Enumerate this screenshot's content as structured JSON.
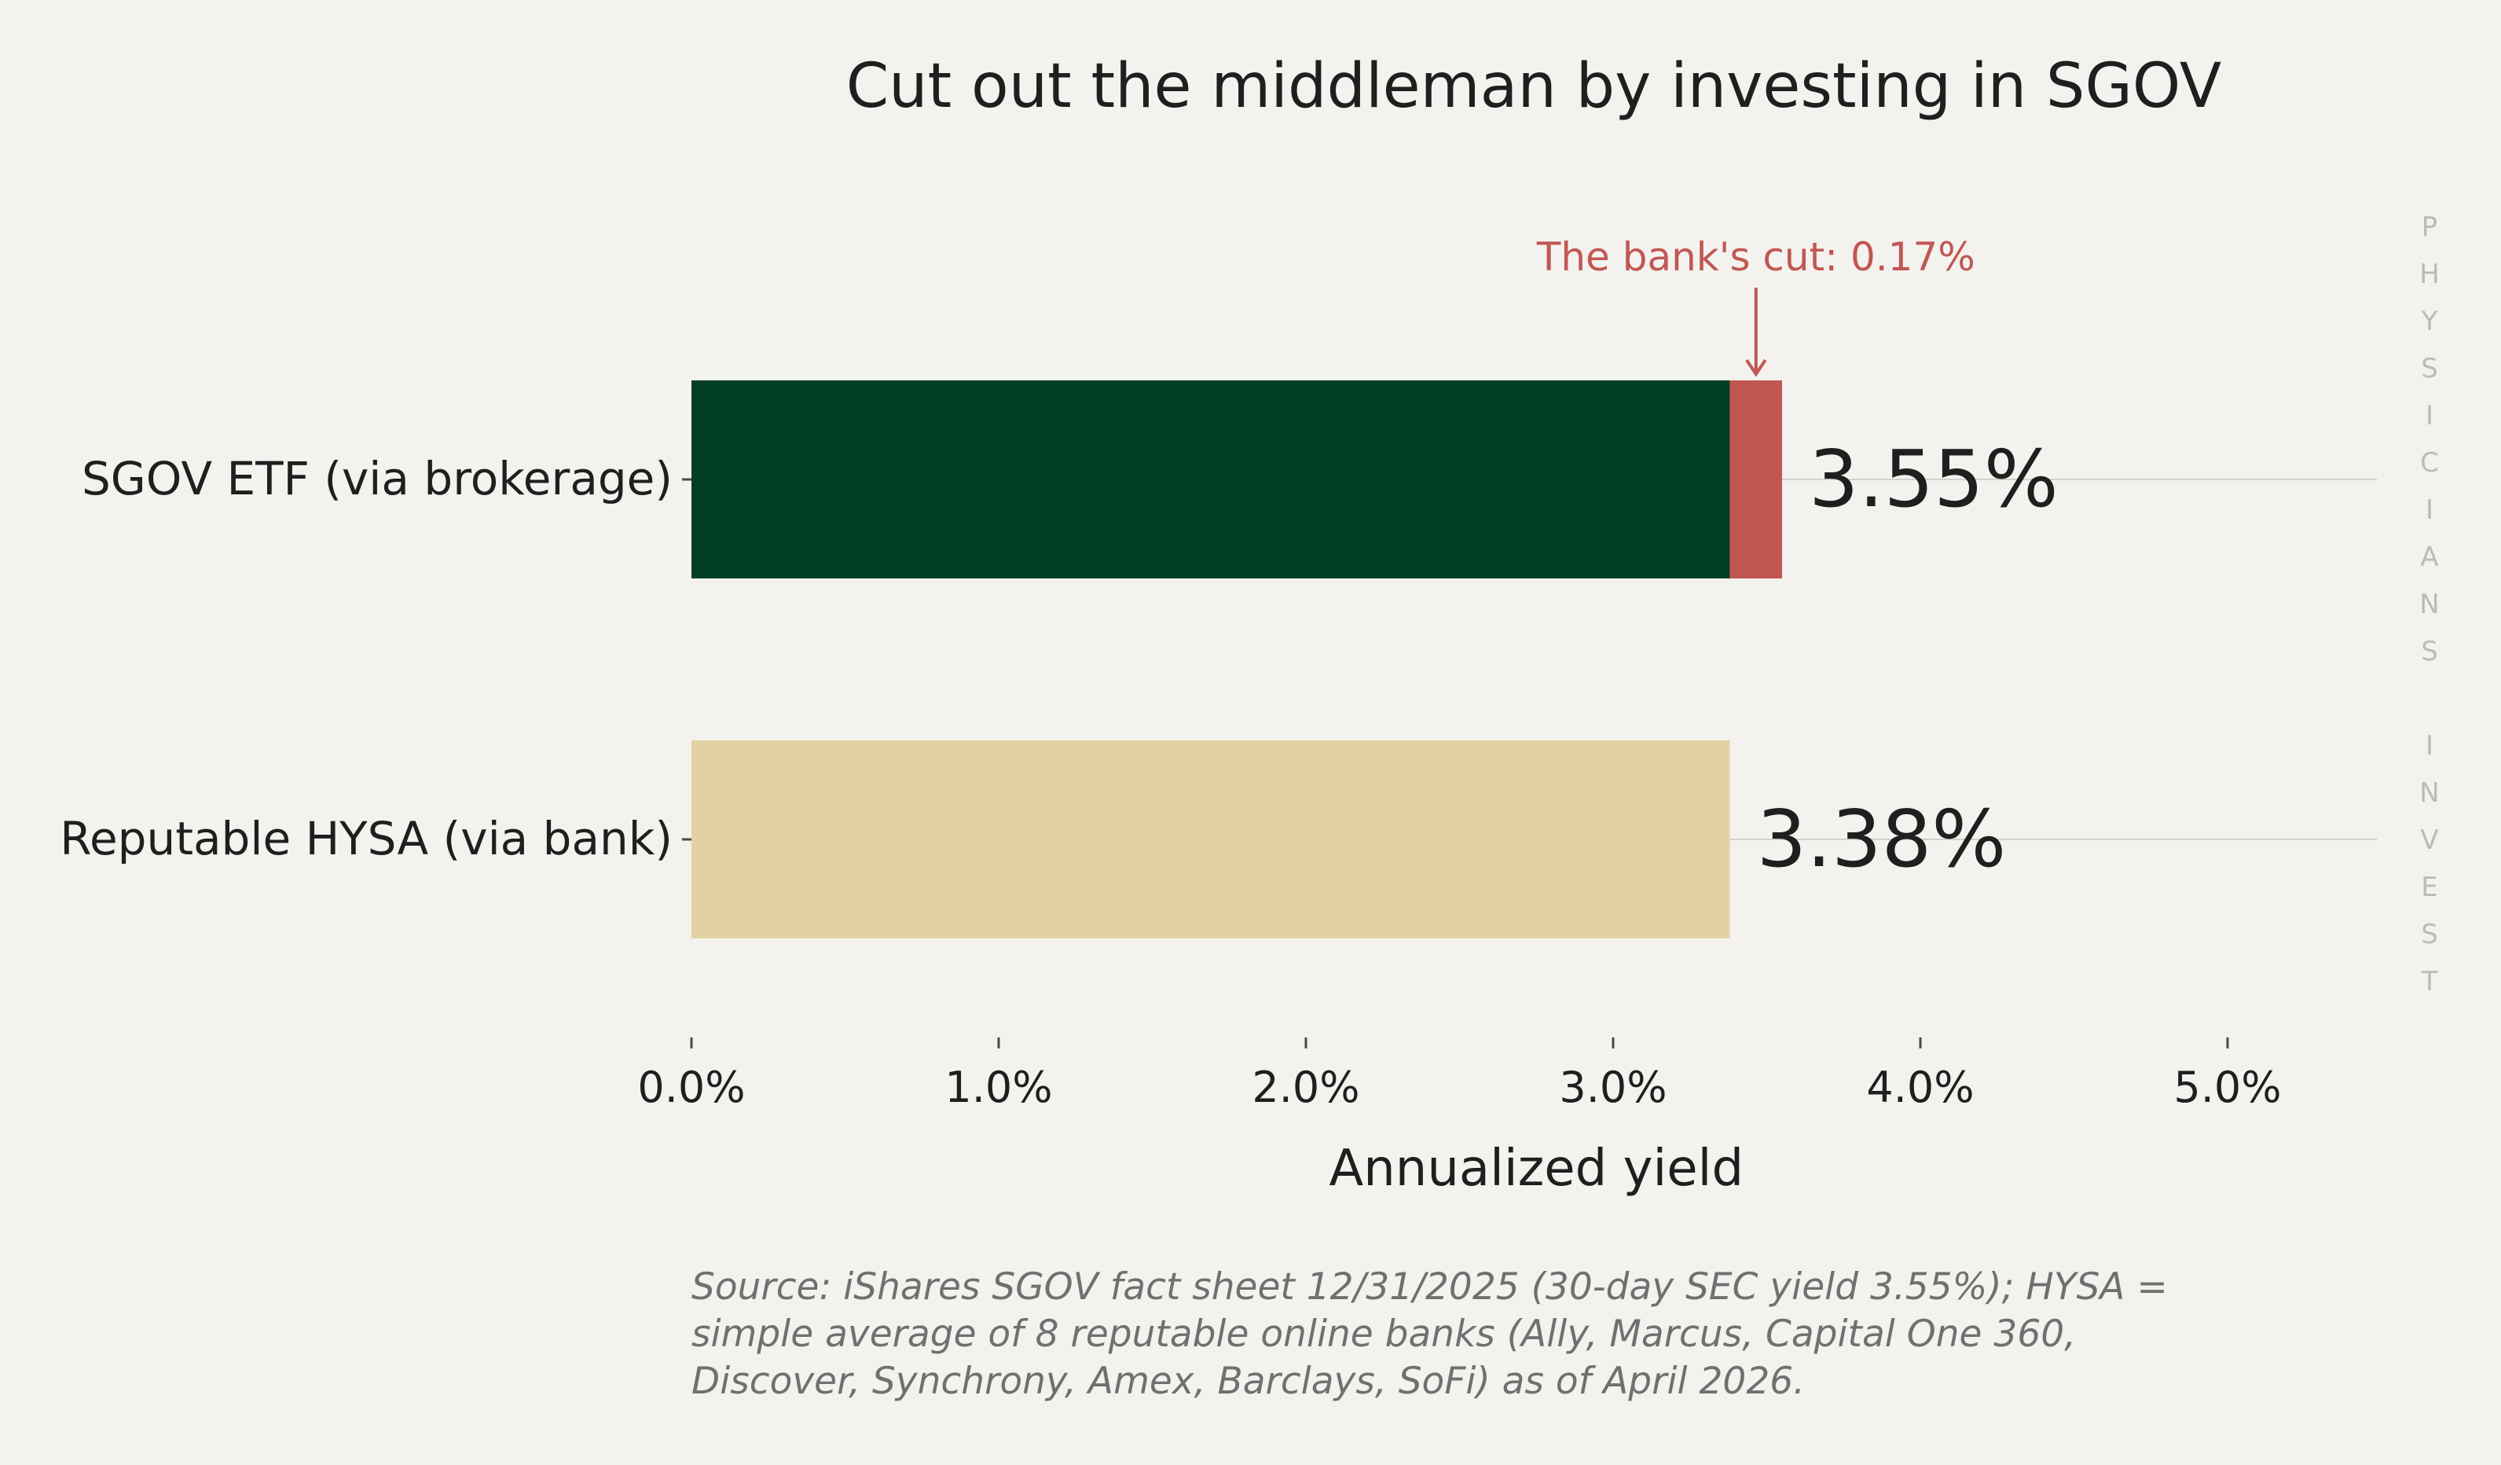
{
  "chart_data": {
    "type": "bar",
    "orientation": "horizontal",
    "stacked": true,
    "title": "Cut out the middleman by investing in SGOV",
    "xlabel": "Annualized yield",
    "ylabel": "",
    "xlim": [
      0,
      5.5
    ],
    "x_ticks": [
      0,
      1,
      2,
      3,
      4,
      5
    ],
    "x_tick_labels": [
      "0.0%",
      "1.0%",
      "2.0%",
      "3.0%",
      "4.0%",
      "5.0%"
    ],
    "grid": false,
    "categories": [
      "SGOV ETF (via brokerage)",
      "Reputable HYSA (via bank)"
    ],
    "series": [
      {
        "values": [
          3.38,
          3.38
        ],
        "colors": [
          "#013f24",
          "#e3d2a1"
        ]
      },
      {
        "values": [
          0.17,
          0
        ],
        "colors": [
          "#c15753",
          "#c15753"
        ]
      }
    ],
    "value_labels": [
      "3.55%",
      "3.38%"
    ],
    "annotation": {
      "text": "The bank's cut: 0.17%",
      "x": 3.465,
      "category": "SGOV ETF (via brokerage)",
      "color": "#c15753"
    },
    "watermark": [
      "P",
      "H",
      "Y",
      "S",
      "I",
      "C",
      "I",
      "A",
      "N",
      "S",
      "",
      "I",
      "N",
      "V",
      "E",
      "S",
      "T"
    ]
  },
  "source": {
    "lines": [
      "Source: iShares SGOV fact sheet 12/31/2025 (30-day SEC yield 3.55%); HYSA =",
      "simple average of 8 reputable online banks (Ally, Marcus, Capital One 360,",
      "Discover, Synchrony, Amex, Barclays, SoFi) as of April 2026."
    ]
  },
  "colors": {
    "background": "#f4f2ee",
    "text": "#1f1f1f",
    "axis": "#4a4a4a",
    "gridline": "#d3d0cb",
    "watermark": "#b8bcb8",
    "source": "#707070"
  }
}
